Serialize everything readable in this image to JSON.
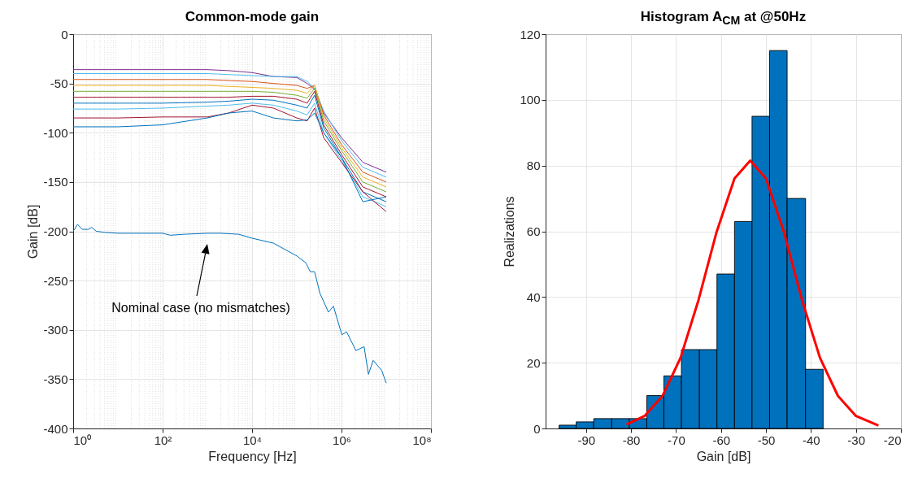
{
  "chart_data": [
    {
      "type": "line",
      "title": "Common-mode gain",
      "xlabel": "Frequency [Hz]",
      "ylabel": "Gain [dB]",
      "log": "x",
      "grid": true,
      "x": [
        1,
        10,
        100,
        1000,
        3000,
        10000,
        30000,
        100000,
        170000,
        250000,
        400000,
        1000000,
        3000000,
        10000000
      ],
      "series": [
        {
          "color": "#7e2f8e",
          "values": [
            -36,
            -36,
            -36,
            -36,
            -37,
            -39,
            -43,
            -44,
            -50,
            -56,
            -80,
            -105,
            -130,
            -140
          ]
        },
        {
          "color": "#4dbeee",
          "values": [
            -40,
            -40,
            -40,
            -40,
            -41,
            -42,
            -43,
            -43,
            -48,
            -55,
            -78,
            -108,
            -135,
            -145
          ]
        },
        {
          "color": "#d95319",
          "values": [
            -46,
            -46,
            -46,
            -46,
            -47,
            -48,
            -50,
            -52,
            -55,
            -52,
            -82,
            -112,
            -140,
            -150
          ]
        },
        {
          "color": "#edb120",
          "values": [
            -52,
            -52,
            -52,
            -52,
            -53,
            -54,
            -55,
            -57,
            -60,
            -52,
            -85,
            -115,
            -145,
            -155
          ]
        },
        {
          "color": "#77ac30",
          "values": [
            -58,
            -58,
            -58,
            -58,
            -58,
            -58,
            -59,
            -62,
            -65,
            -55,
            -88,
            -118,
            -150,
            -160
          ]
        },
        {
          "color": "#a2142f",
          "values": [
            -64,
            -64,
            -64,
            -64,
            -64,
            -63,
            -63,
            -66,
            -70,
            -58,
            -92,
            -122,
            -155,
            -165
          ]
        },
        {
          "color": "#0072bd",
          "values": [
            -70,
            -70,
            -70,
            -69,
            -68,
            -66,
            -67,
            -72,
            -75,
            -62,
            -95,
            -125,
            -160,
            -170
          ]
        },
        {
          "color": "#4dbeee",
          "values": [
            -76,
            -76,
            -75,
            -73,
            -72,
            -70,
            -72,
            -78,
            -82,
            -70,
            -100,
            -128,
            -165,
            -175
          ]
        },
        {
          "color": "#a2142f",
          "values": [
            -85,
            -85,
            -84,
            -84,
            -80,
            -72,
            -75,
            -85,
            -88,
            -75,
            -105,
            -130,
            -160,
            -180
          ]
        },
        {
          "color": "#0072bd",
          "values": [
            -94,
            -94,
            -92,
            -85,
            -80,
            -78,
            -85,
            -88,
            -87,
            -80,
            -100,
            -125,
            -170,
            -165
          ]
        },
        {
          "color": "#0072bd",
          "x": [
            1,
            1.25,
            1.6,
            2.2,
            2.6,
            3.3,
            5,
            10,
            30,
            100,
            150,
            300,
            1000,
            2000,
            5000,
            10000,
            30000,
            100000,
            160000,
            200000,
            250000,
            330000,
            510000,
            660000,
            1020000,
            1300000,
            2100000,
            3200000,
            4000000,
            5100000,
            7900000,
            10000000
          ],
          "values": [
            -200,
            -193,
            -198,
            -198,
            -196,
            -200,
            -201,
            -202,
            -202,
            -202,
            -204,
            -203,
            -202,
            -202,
            -203,
            -207,
            -212,
            -225,
            -232,
            -241,
            -241,
            -263,
            -282,
            -276,
            -305,
            -302,
            -321,
            -317,
            -345,
            -331,
            -341,
            -354
          ]
        }
      ],
      "xlim": [
        1,
        100000000
      ],
      "xticks": [
        {
          "value": 1,
          "label": "10⁰"
        },
        {
          "value": 100,
          "label": "10²"
        },
        {
          "value": 10000,
          "label": "10⁴"
        },
        {
          "value": 1000000,
          "label": "10⁶"
        },
        {
          "value": 100000000,
          "label": "10⁸"
        }
      ],
      "ylim": [
        -400,
        0
      ],
      "yticks": [
        -400,
        -350,
        -300,
        -250,
        -200,
        -150,
        -100,
        -50,
        0
      ],
      "annotations": [
        "Nominal case (no mismatches)"
      ]
    },
    {
      "type": "histogram",
      "title": "Histogram A$_{CM}$ at @50Hz",
      "xlabel": "Gain [dB]",
      "ylabel": "Realizations",
      "grid": true,
      "color": "#0072bd",
      "bins": [
        -96.0,
        -92.2,
        -88.3,
        -84.3,
        -80.4,
        -76.5,
        -72.7,
        -68.8,
        -64.8,
        -60.9,
        -57.0,
        -53.1,
        -49.2,
        -45.3,
        -41.2,
        -37.3
      ],
      "values": [
        1,
        2,
        3,
        3,
        3,
        10,
        16,
        24,
        24,
        47,
        63,
        95,
        115,
        70,
        18
      ],
      "series": [
        {
          "type": "line",
          "color": "#ff0000",
          "x": [
            -81,
            -77,
            -73,
            -69,
            -65,
            -61,
            -57,
            -53.5,
            -50,
            -46,
            -42,
            -38,
            -34,
            -30,
            -25
          ],
          "values": [
            1.2,
            3.8,
            9.9,
            21.5,
            39.1,
            59.7,
            76.1,
            81.5,
            76.1,
            59.7,
            39.1,
            21.5,
            9.9,
            3.8,
            0.9
          ]
        }
      ],
      "xlim": [
        -99,
        -20
      ],
      "xticks": [
        -90,
        -80,
        -70,
        -60,
        -50,
        -40,
        -30,
        -20
      ],
      "ylim": [
        0,
        120
      ],
      "yticks": [
        0,
        20,
        40,
        60,
        80,
        100,
        120
      ]
    }
  ]
}
